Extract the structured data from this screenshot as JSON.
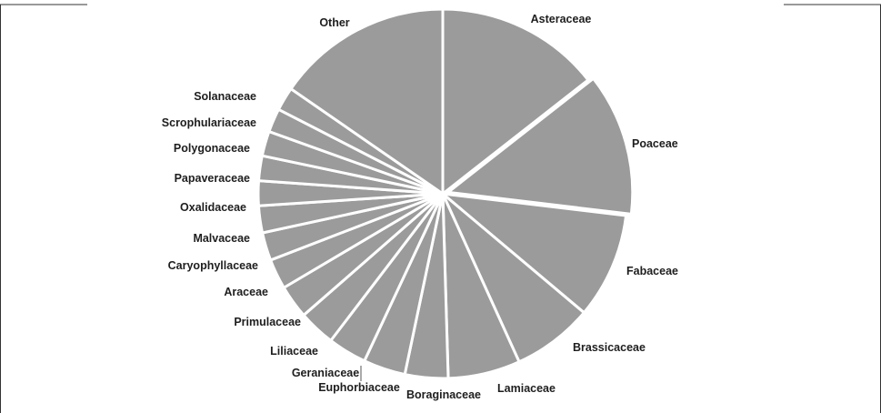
{
  "chart_data": {
    "type": "pie",
    "title": "",
    "start_angle_deg": 0,
    "direction": "clockwise",
    "colors": {
      "slice_fill": "#9b9b9b",
      "separator": "#ffffff",
      "label_text": "#1e1e1e",
      "frame": "#333333",
      "leader": "#555555"
    },
    "slices": [
      {
        "label": "Asteraceae",
        "value": 15.3
      },
      {
        "label": "Poaceae",
        "value": 13.2
      },
      {
        "label": "Fabaceae",
        "value": 9.8
      },
      {
        "label": "Brassicaceae",
        "value": 7.5
      },
      {
        "label": "Lamiaceae",
        "value": 6.7
      },
      {
        "label": "Boraginaceae",
        "value": 4.0
      },
      {
        "label": "Euphorbiaceae",
        "value": 3.9
      },
      {
        "label": "Geraniaceae",
        "value": 3.6
      },
      {
        "label": "Liliaceae",
        "value": 3.4
      },
      {
        "label": "Primulaceae",
        "value": 3.1
      },
      {
        "label": "Araceae",
        "value": 2.8
      },
      {
        "label": "Caryophyllaceae",
        "value": 2.6
      },
      {
        "label": "Malvaceae",
        "value": 2.5
      },
      {
        "label": "Oxalidaceae",
        "value": 2.3
      },
      {
        "label": "Papaveraceae",
        "value": 2.3
      },
      {
        "label": "Polygonaceae",
        "value": 2.3
      },
      {
        "label": "Scrophulariaceae",
        "value": 2.2
      },
      {
        "label": "Solanaceae",
        "value": 2.2
      },
      {
        "label": "Other",
        "value": 16.3
      }
    ]
  }
}
